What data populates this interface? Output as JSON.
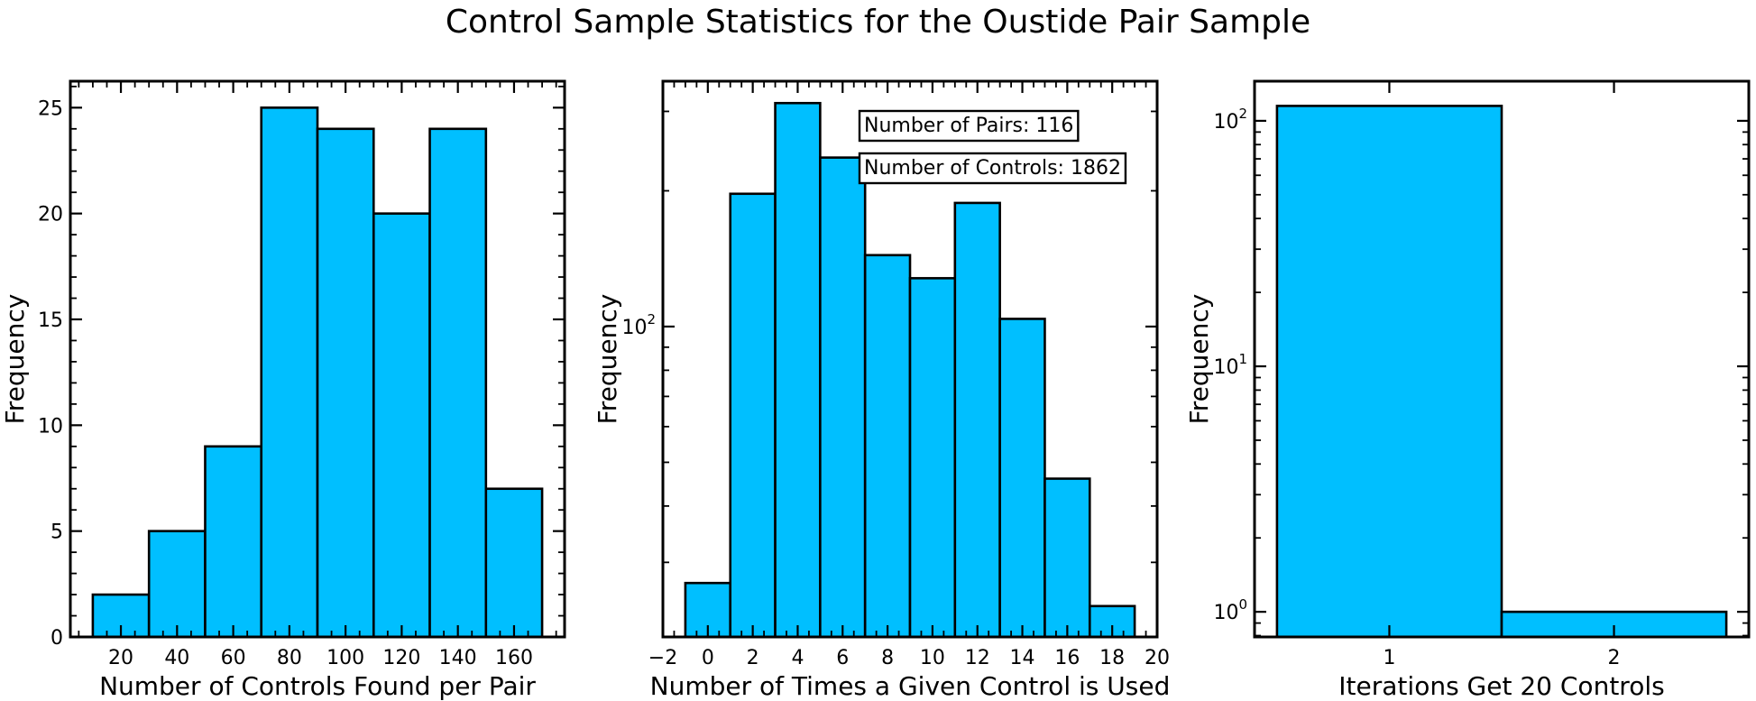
{
  "figure": {
    "title": "Control Sample Statistics for the Oustide Pair Sample"
  },
  "colors": {
    "bar_fill": "#00bfff",
    "bar_edge": "#000000"
  },
  "chart_data": [
    {
      "type": "bar",
      "title": "",
      "xlabel": "Number of Controls Found per Pair",
      "ylabel": "Frequency",
      "yscale": "linear",
      "bins": [
        {
          "x0": 10,
          "x1": 30,
          "value": 2
        },
        {
          "x0": 30,
          "x1": 50,
          "value": 5
        },
        {
          "x0": 50,
          "x1": 70,
          "value": 9
        },
        {
          "x0": 70,
          "x1": 90,
          "value": 25
        },
        {
          "x0": 90,
          "x1": 110,
          "value": 24
        },
        {
          "x0": 110,
          "x1": 130,
          "value": 20
        },
        {
          "x0": 130,
          "x1": 150,
          "value": 24
        },
        {
          "x0": 150,
          "x1": 170,
          "value": 7
        }
      ],
      "xlim": [
        2,
        178
      ],
      "ylim": [
        0,
        26.25
      ],
      "xticks": [
        20,
        40,
        60,
        80,
        100,
        120,
        140,
        160
      ],
      "xtick_labels": [
        "20",
        "40",
        "60",
        "80",
        "100",
        "120",
        "140",
        "160"
      ],
      "yticks": [
        0,
        5,
        10,
        15,
        20,
        25
      ],
      "ytick_labels": [
        "0",
        "5",
        "10",
        "15",
        "20",
        "25"
      ],
      "annotations": []
    },
    {
      "type": "bar",
      "title": "",
      "xlabel": "Number of Times a Given Control is Used",
      "ylabel": "Frequency",
      "yscale": "log",
      "bins": [
        {
          "x0": -1,
          "x1": 1,
          "value": 27
        },
        {
          "x0": 1,
          "x1": 3,
          "value": 197
        },
        {
          "x0": 3,
          "x1": 5,
          "value": 313
        },
        {
          "x0": 5,
          "x1": 7,
          "value": 237
        },
        {
          "x0": 7,
          "x1": 9,
          "value": 144
        },
        {
          "x0": 9,
          "x1": 11,
          "value": 128
        },
        {
          "x0": 11,
          "x1": 13,
          "value": 188
        },
        {
          "x0": 13,
          "x1": 15,
          "value": 104
        },
        {
          "x0": 15,
          "x1": 17,
          "value": 46
        },
        {
          "x0": 17,
          "x1": 19,
          "value": 24
        }
      ],
      "xlim": [
        -2,
        20
      ],
      "ylim": [
        20.5,
        350
      ],
      "xticks": [
        -2,
        0,
        2,
        4,
        6,
        8,
        10,
        12,
        14,
        16,
        18,
        20
      ],
      "xtick_labels": [
        "−2",
        "0",
        "2",
        "4",
        "6",
        "8",
        "10",
        "12",
        "14",
        "16",
        "18",
        "20"
      ],
      "yticks": [
        100
      ],
      "ytick_labels": [
        {
          "base": "10",
          "exp": "2"
        }
      ],
      "annotations": [
        "Number of Pairs: 116",
        "Number of Controls: 1862"
      ]
    },
    {
      "type": "bar",
      "title": "",
      "xlabel": "Iterations Get 20 Controls",
      "ylabel": "Frequency",
      "yscale": "log",
      "bins": [
        {
          "x0": 0.5,
          "x1": 1.5,
          "value": 115
        },
        {
          "x0": 1.5,
          "x1": 2.5,
          "value": 1
        }
      ],
      "xlim": [
        0.4,
        2.6
      ],
      "ylim": [
        0.79,
        145
      ],
      "xticks": [
        1,
        2
      ],
      "xtick_labels": [
        "1",
        "2"
      ],
      "yticks": [
        1,
        10,
        100
      ],
      "ytick_labels": [
        {
          "base": "10",
          "exp": "0"
        },
        {
          "base": "10",
          "exp": "1"
        },
        {
          "base": "10",
          "exp": "2"
        }
      ],
      "annotations": []
    }
  ]
}
